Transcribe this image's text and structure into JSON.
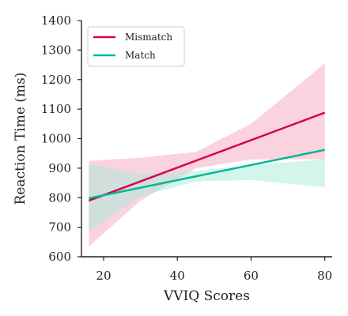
{
  "chart_data": {
    "type": "line",
    "xlabel": "VVIQ Scores",
    "ylabel": "Reaction Time (ms)",
    "xlim": [
      14,
      82
    ],
    "ylim": [
      600,
      1400
    ],
    "xticks": [
      20,
      40,
      60,
      80
    ],
    "yticks": [
      600,
      700,
      800,
      900,
      1000,
      1100,
      1200,
      1300,
      1400
    ],
    "grid": false,
    "legend_position": "top-left",
    "series": [
      {
        "name": "Mismatch",
        "color": "#d6004a",
        "band_color": "#f7a8c0",
        "x": [
          16,
          80
        ],
        "y": [
          790,
          1088
        ],
        "ci": {
          "x": [
            16,
            30,
            45,
            60,
            80
          ],
          "upper": [
            925,
            935,
            955,
            1050,
            1255
          ],
          "lower": [
            635,
            790,
            900,
            930,
            930
          ]
        }
      },
      {
        "name": "Match",
        "color": "#00b894",
        "band_color": "#a8ecd9",
        "x": [
          16,
          80
        ],
        "y": [
          798,
          962
        ],
        "ci": {
          "x": [
            16,
            30,
            45,
            60,
            80
          ],
          "upper": [
            915,
            880,
            890,
            910,
            930
          ],
          "lower": [
            685,
            805,
            855,
            860,
            835
          ]
        }
      }
    ]
  }
}
